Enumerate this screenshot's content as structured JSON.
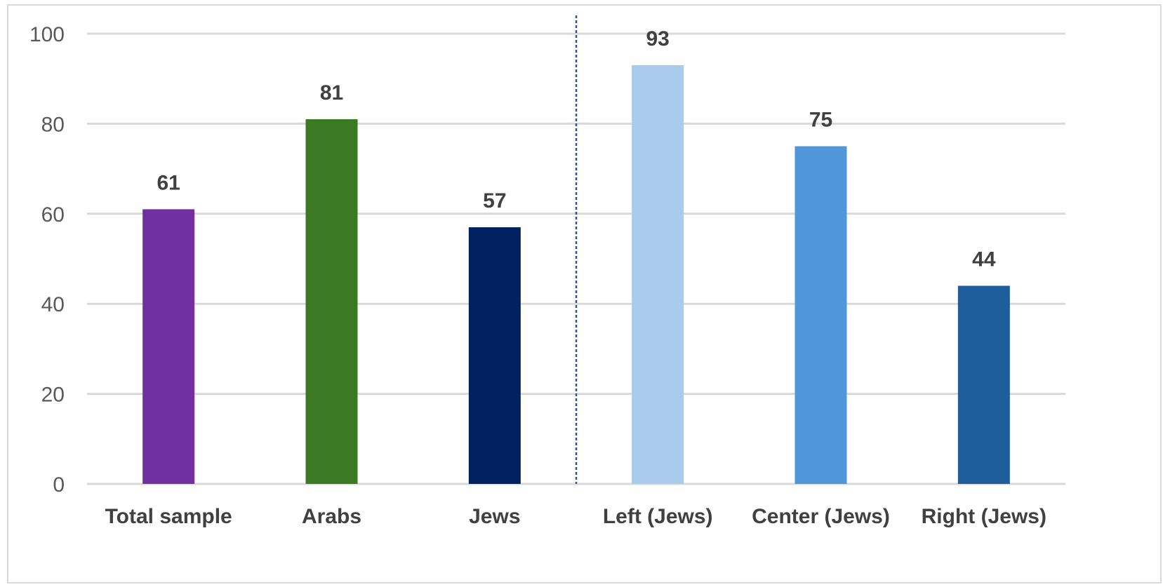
{
  "chart_data": {
    "type": "bar",
    "title": "",
    "xlabel": "",
    "ylabel": "",
    "categories": [
      "Total sample",
      "Arabs",
      "Jews",
      "Left (Jews)",
      "Center (Jews)",
      "Right (Jews)"
    ],
    "values": [
      61,
      81,
      57,
      93,
      75,
      44
    ],
    "data_labels": [
      "61",
      "81",
      "57",
      "93",
      "75",
      "44"
    ],
    "bar_colors": [
      "#7030a0",
      "#3b7a22",
      "#002060",
      "#a9cbec",
      "#5097da",
      "#1f5e9c"
    ],
    "ylim": [
      0,
      100
    ],
    "yticks": [
      0,
      20,
      40,
      60,
      80,
      100
    ],
    "grid": true,
    "gridline_color": "#d9d9d9",
    "separator_line_color": "#2f5597",
    "separator_after_category": "Jews",
    "legend": "none"
  }
}
